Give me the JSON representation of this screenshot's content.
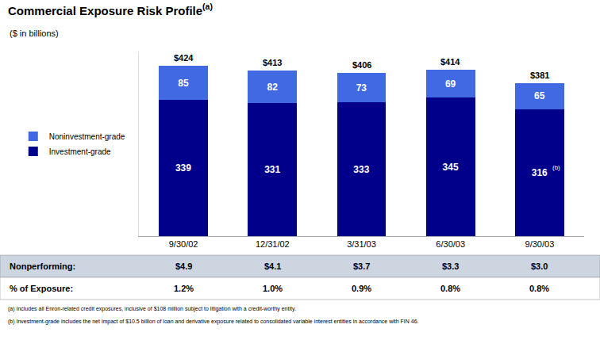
{
  "chart_data": {
    "type": "bar",
    "stacked": true,
    "title": "Commercial Exposure Risk Profile",
    "title_superscript": "(a)",
    "subtitle": "($ in billions)",
    "categories": [
      "9/30/02",
      "12/31/02",
      "3/31/03",
      "6/30/03",
      "9/30/03"
    ],
    "series": [
      {
        "name": "Investment-grade",
        "color": "#00008B",
        "values": [
          339,
          331,
          333,
          345,
          316
        ]
      },
      {
        "name": "Noninvestment-grade",
        "color": "#4169E1",
        "values": [
          85,
          82,
          73,
          69,
          65
        ]
      }
    ],
    "data_labels": true,
    "totals": [
      424,
      413,
      406,
      414,
      381
    ],
    "total_labels": [
      "$424",
      "$413",
      "$406",
      "$414",
      "$381"
    ],
    "annotations": [
      {
        "text": "(b)",
        "category": "9/30/03",
        "series": "Investment-grade"
      }
    ],
    "ylim": [
      0,
      460
    ],
    "grid": false,
    "legend": "left",
    "tick_labels": "x",
    "table": [
      {
        "label": "Nonperforming:",
        "color": "#ccd5e0",
        "values": [
          4.9,
          4.1,
          3.7,
          3.3,
          3.0
        ],
        "value_labels": [
          "$4.9",
          "$4.1",
          "$3.7",
          "$3.3",
          "$3.0"
        ]
      },
      {
        "label": "% of Exposure:",
        "color": "#ffffff",
        "values": [
          1.2,
          1.0,
          0.9,
          0.8,
          0.8
        ],
        "value_labels": [
          "1.2%",
          "1.0%",
          "0.9%",
          "0.8%",
          "0.8%"
        ]
      }
    ],
    "footnotes": [
      "(a) Includes all Enron-related credit exposures, inclusive of $108 million subject to litigation with a credit-worthy entity.",
      "(b) Investment-grade includes the net impact of $10.5 billion of loan and derivative exposure related to consolidated variable interest entities in accordance with FIN 46."
    ]
  }
}
